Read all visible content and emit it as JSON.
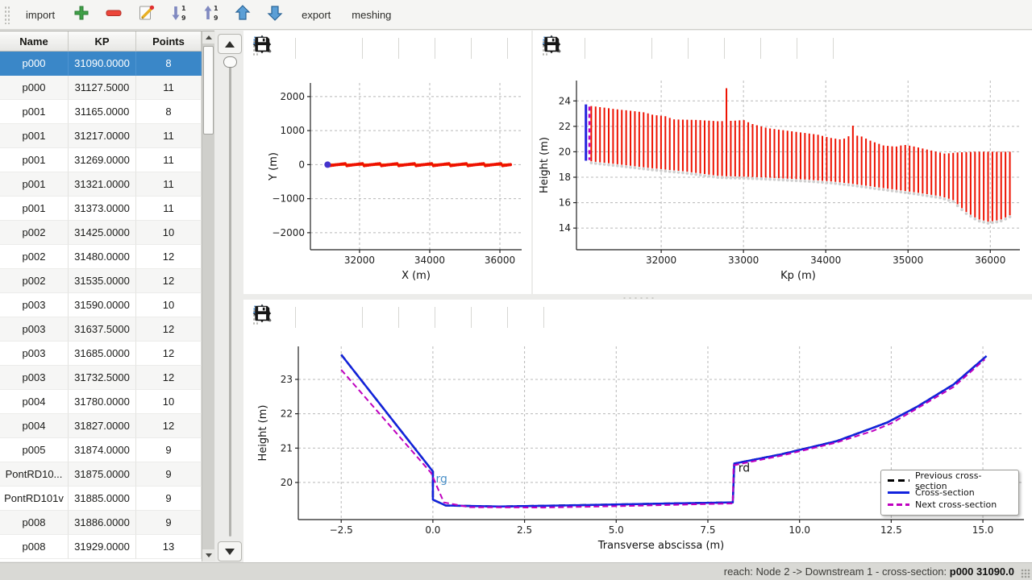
{
  "toolbar": {
    "import_label": "import",
    "export_label": "export",
    "meshing_label": "meshing",
    "icon_buttons": [
      "add-section",
      "remove-section",
      "edit-section",
      "sort-descending",
      "sort-ascending",
      "move-up",
      "move-down"
    ]
  },
  "mpl_toolbar": {
    "buttons": [
      "home",
      "back",
      "forward",
      "pan",
      "zoom",
      "zoom-one",
      "zoom-rect",
      "save"
    ],
    "overflow": "»"
  },
  "table": {
    "columns": [
      "Name",
      "KP",
      "Points"
    ],
    "selected_index": 0,
    "rows": [
      [
        "p000",
        "31090.0000",
        "8"
      ],
      [
        "p000",
        "31127.5000",
        "11"
      ],
      [
        "p001",
        "31165.0000",
        "8"
      ],
      [
        "p001",
        "31217.0000",
        "11"
      ],
      [
        "p001",
        "31269.0000",
        "11"
      ],
      [
        "p001",
        "31321.0000",
        "11"
      ],
      [
        "p001",
        "31373.0000",
        "11"
      ],
      [
        "p002",
        "31425.0000",
        "10"
      ],
      [
        "p002",
        "31480.0000",
        "12"
      ],
      [
        "p002",
        "31535.0000",
        "12"
      ],
      [
        "p003",
        "31590.0000",
        "10"
      ],
      [
        "p003",
        "31637.5000",
        "12"
      ],
      [
        "p003",
        "31685.0000",
        "12"
      ],
      [
        "p003",
        "31732.5000",
        "12"
      ],
      [
        "p004",
        "31780.0000",
        "10"
      ],
      [
        "p004",
        "31827.0000",
        "12"
      ],
      [
        "p005",
        "31874.0000",
        "9"
      ],
      [
        "PontRD10...",
        "31875.0000",
        "9"
      ],
      [
        "PontRD101v",
        "31885.0000",
        "9"
      ],
      [
        "p008",
        "31886.0000",
        "9"
      ],
      [
        "p008",
        "31929.0000",
        "13"
      ]
    ]
  },
  "statusbar": {
    "prefix": "reach: Node 2 -> Downstream 1 - cross-section: ",
    "highlight": "p000 31090.0"
  },
  "colors": {
    "selection_blue": "#3a87c8",
    "plot_red": "#ee1100",
    "plot_orange": "#ff7f0e",
    "plot_blue": "#1122dd",
    "plot_magenta": "#bf00bf",
    "start_point_violet": "#4433cc",
    "bank_label_blue": "#4a90c8"
  },
  "chart_data": [
    {
      "id": "plan",
      "type": "scatter",
      "xlabel": "X (m)",
      "ylabel": "Y (m)",
      "xlim": [
        30600,
        36620
      ],
      "ylim": [
        -2500,
        2400
      ],
      "xticks": [
        32000,
        34000,
        36000
      ],
      "xtick_labels": [
        "32000",
        "34000",
        "36000"
      ],
      "yticks": [
        2000,
        1000,
        0,
        -1000,
        -2000
      ],
      "ytick_labels": [
        "2000",
        "1000",
        "0",
        "−1000",
        "−2000"
      ],
      "grid": true,
      "axis_line": {
        "x": [
          31150,
          36300
        ],
        "y": 0,
        "color": "#ff7f0e",
        "width": 3
      },
      "markers": {
        "x_start": 31150,
        "x_end": 36300,
        "count": 95,
        "color": "#ee1100",
        "size": 2
      },
      "start_point": {
        "x": 31090,
        "y": 0,
        "color": "#4433cc",
        "size": 4
      }
    },
    {
      "id": "profile",
      "type": "bar-range",
      "xlabel": "Kp (m)",
      "ylabel": "Height (m)",
      "xlim": [
        30970,
        36360
      ],
      "ylim": [
        12.3,
        25.6
      ],
      "xticks": [
        32000,
        33000,
        34000,
        35000,
        36000
      ],
      "xtick_labels": [
        "32000",
        "33000",
        "34000",
        "35000",
        "36000"
      ],
      "yticks": [
        14,
        16,
        18,
        20,
        22,
        24
      ],
      "ytick_labels": [
        "14",
        "16",
        "18",
        "20",
        "22",
        "24"
      ],
      "grid": true,
      "bars": {
        "color": "#ee1100",
        "width": 2,
        "kp_start": 31150,
        "kp_end": 36270,
        "spacing": 53,
        "top_envelope": [
          [
            31150,
            23.6
          ],
          [
            31450,
            23.35
          ],
          [
            31800,
            23.1
          ],
          [
            31900,
            22.9
          ],
          [
            32050,
            22.8
          ],
          [
            32150,
            22.55
          ],
          [
            32450,
            22.5
          ],
          [
            32700,
            22.4
          ],
          [
            32900,
            22.45
          ],
          [
            33000,
            22.5
          ],
          [
            33100,
            22.2
          ],
          [
            33300,
            21.85
          ],
          [
            33600,
            21.6
          ],
          [
            33900,
            21.35
          ],
          [
            34050,
            21.1
          ],
          [
            34200,
            20.95
          ],
          [
            34300,
            21.3
          ],
          [
            34420,
            21.25
          ],
          [
            34550,
            20.85
          ],
          [
            34700,
            20.5
          ],
          [
            34850,
            20.4
          ],
          [
            34950,
            20.55
          ],
          [
            35050,
            20.45
          ],
          [
            35250,
            20.15
          ],
          [
            35450,
            19.85
          ],
          [
            35600,
            19.95
          ],
          [
            35800,
            20.0
          ],
          [
            36270,
            20.0
          ]
        ],
        "bottom_envelope": [
          [
            31150,
            19.25
          ],
          [
            31500,
            19.0
          ],
          [
            31900,
            18.7
          ],
          [
            32300,
            18.45
          ],
          [
            32700,
            18.1
          ],
          [
            33200,
            18.0
          ],
          [
            33800,
            17.8
          ],
          [
            34100,
            17.65
          ],
          [
            34300,
            17.5
          ],
          [
            34700,
            17.15
          ],
          [
            35100,
            16.8
          ],
          [
            35400,
            16.5
          ],
          [
            35550,
            16.2
          ],
          [
            35700,
            15.3
          ],
          [
            35850,
            14.7
          ],
          [
            35980,
            14.5
          ],
          [
            36120,
            14.65
          ],
          [
            36270,
            15.1
          ]
        ],
        "spikes": [
          [
            32780,
            25.0
          ],
          [
            34350,
            22.05
          ]
        ]
      },
      "selected_bar": {
        "kp": 31085,
        "bottom": 19.3,
        "top": 23.72,
        "color": "#2222dd"
      },
      "next_bar": {
        "kp": 31127,
        "bottom": 19.35,
        "top": 23.55,
        "color": "#bf00bf",
        "dashed": true
      }
    },
    {
      "id": "cross-section",
      "type": "line",
      "xlabel": "Transverse abscissa (m)",
      "ylabel": "Height (m)",
      "xlim": [
        -3.67,
        16.12
      ],
      "ylim": [
        18.92,
        23.96
      ],
      "xticks": [
        -2.5,
        0.0,
        2.5,
        5.0,
        7.5,
        10.0,
        12.5,
        15.0
      ],
      "xtick_labels": [
        "−2.5",
        "0.0",
        "2.5",
        "5.0",
        "7.5",
        "10.0",
        "12.5",
        "15.0"
      ],
      "yticks": [
        20,
        21,
        22,
        23
      ],
      "ytick_labels": [
        "20",
        "21",
        "22",
        "23"
      ],
      "grid": true,
      "series": [
        {
          "name": "Previous cross-section",
          "color": "#000000",
          "dash": "8 5",
          "width": 2.5,
          "points": [
            [
              -2.5,
              23.72
            ],
            [
              0,
              20.32
            ],
            [
              0,
              19.5
            ],
            [
              0.35,
              19.33
            ],
            [
              1.8,
              19.3
            ],
            [
              4,
              19.34
            ],
            [
              6,
              19.38
            ],
            [
              8.18,
              19.42
            ],
            [
              8.22,
              20.55
            ],
            [
              9.5,
              20.82
            ],
            [
              11,
              21.2
            ],
            [
              11.9,
              21.55
            ],
            [
              12.4,
              21.75
            ],
            [
              13.2,
              22.2
            ],
            [
              14.2,
              22.85
            ],
            [
              15.1,
              23.68
            ]
          ]
        },
        {
          "name": "Cross-section",
          "color": "#1122dd",
          "dash": null,
          "width": 2.5,
          "points": [
            [
              -2.5,
              23.72
            ],
            [
              0,
              20.32
            ],
            [
              0,
              19.5
            ],
            [
              0.35,
              19.33
            ],
            [
              1.8,
              19.3
            ],
            [
              4,
              19.34
            ],
            [
              6,
              19.38
            ],
            [
              8.18,
              19.42
            ],
            [
              8.22,
              20.55
            ],
            [
              9.5,
              20.82
            ],
            [
              11,
              21.2
            ],
            [
              11.9,
              21.55
            ],
            [
              12.4,
              21.75
            ],
            [
              13.2,
              22.2
            ],
            [
              14.2,
              22.85
            ],
            [
              15.1,
              23.68
            ]
          ]
        },
        {
          "name": "Next cross-section",
          "color": "#bf00bf",
          "dash": "7 4",
          "width": 2,
          "points": [
            [
              -2.5,
              23.28
            ],
            [
              -0.05,
              20.28
            ],
            [
              0.3,
              19.42
            ],
            [
              1,
              19.28
            ],
            [
              3,
              19.27
            ],
            [
              5,
              19.31
            ],
            [
              7,
              19.36
            ],
            [
              8.18,
              19.39
            ],
            [
              8.2,
              20.5
            ],
            [
              9.5,
              20.78
            ],
            [
              11,
              21.16
            ],
            [
              12,
              21.5
            ],
            [
              12.5,
              21.72
            ],
            [
              13.2,
              22.15
            ],
            [
              14.2,
              22.78
            ],
            [
              15.05,
              23.58
            ]
          ]
        }
      ],
      "annotations": [
        {
          "text": "rg",
          "x": 0.08,
          "y": 20.0,
          "color": "#4a90c8"
        },
        {
          "text": "rd",
          "x": 8.33,
          "y": 20.32,
          "color": "#111111"
        }
      ],
      "legend": {
        "position": "lower right",
        "entries": [
          "Previous cross-section",
          "Cross-section",
          "Next cross-section"
        ]
      }
    }
  ]
}
